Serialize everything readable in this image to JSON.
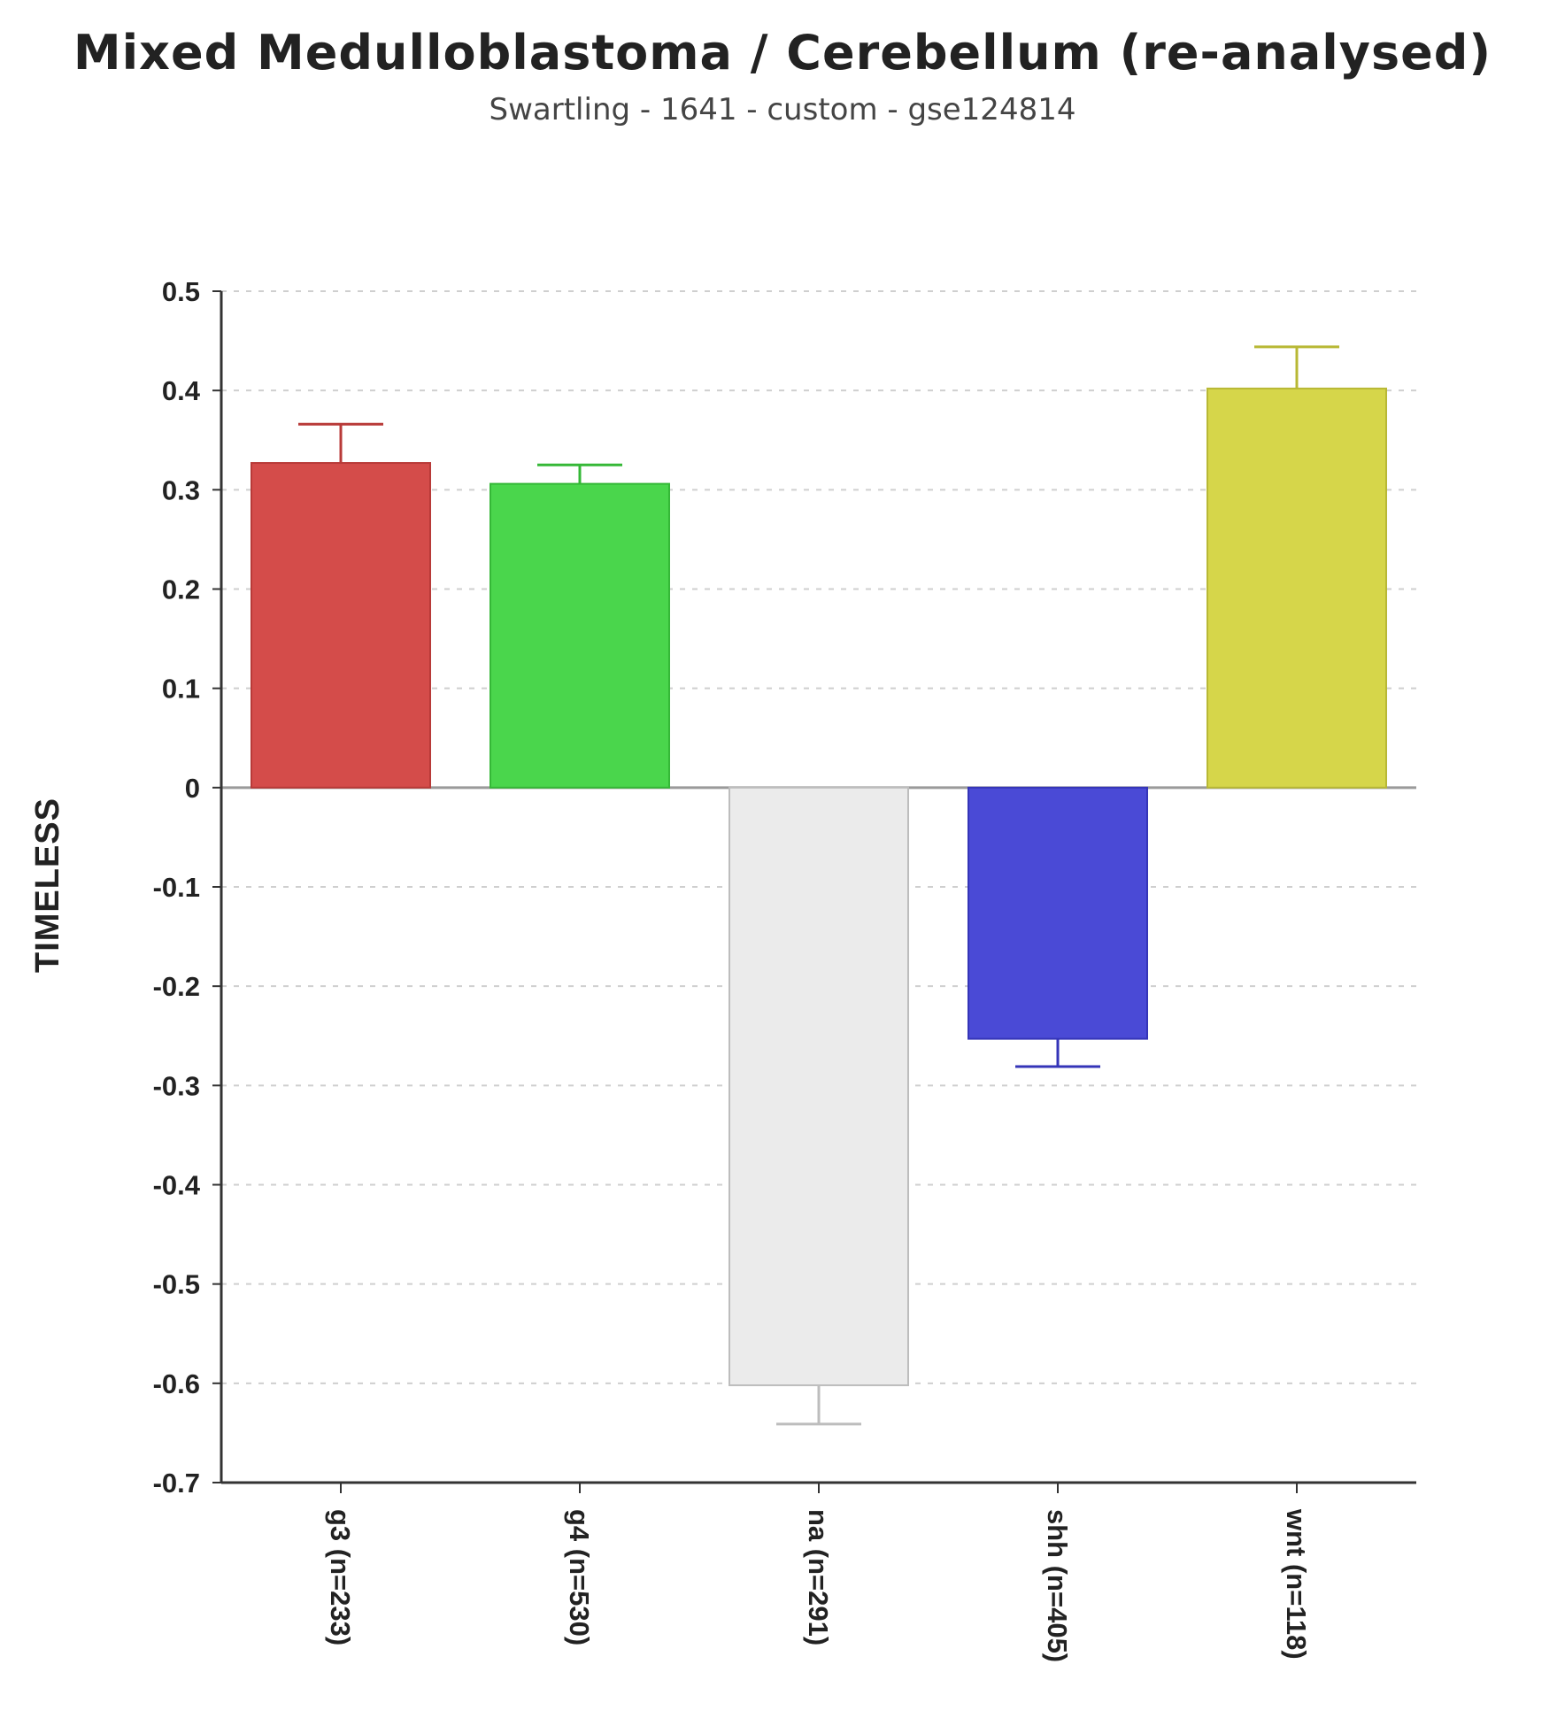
{
  "chart_data": {
    "type": "bar",
    "title": "Mixed Medulloblastoma / Cerebellum (re-analysed)",
    "subtitle": "Swartling - 1641 - custom - gse124814",
    "xlabel": "",
    "ylabel": "TIMELESS",
    "ylim": [
      -0.7,
      0.5
    ],
    "yticks": [
      0.5,
      0.4,
      0.3,
      0.2,
      0.1,
      0,
      -0.1,
      -0.2,
      -0.3,
      -0.4,
      -0.5,
      -0.6,
      -0.7
    ],
    "ytick_labels": [
      "0.5",
      "0.4",
      "0.3",
      "0.2",
      "0.1",
      "0",
      "-0.1",
      "-0.2",
      "-0.3",
      "-0.4",
      "-0.5",
      "-0.6",
      "-0.7"
    ],
    "grid": true,
    "categories": [
      "g3 (n=233)",
      "g4 (n=530)",
      "na (n=291)",
      "shh (n=405)",
      "wnt (n=118)"
    ],
    "values": [
      0.327,
      0.306,
      -0.602,
      -0.253,
      0.402
    ],
    "error": [
      0.039,
      0.019,
      0.039,
      0.028,
      0.042
    ],
    "colors": [
      "#d44c4a",
      "#4ad64c",
      "#ebebeb",
      "#4a4ad6",
      "#d6d64a"
    ],
    "edge_colors": [
      "#b83a38",
      "#35b837",
      "#bdbdbd",
      "#3535b8",
      "#b8b835"
    ]
  }
}
